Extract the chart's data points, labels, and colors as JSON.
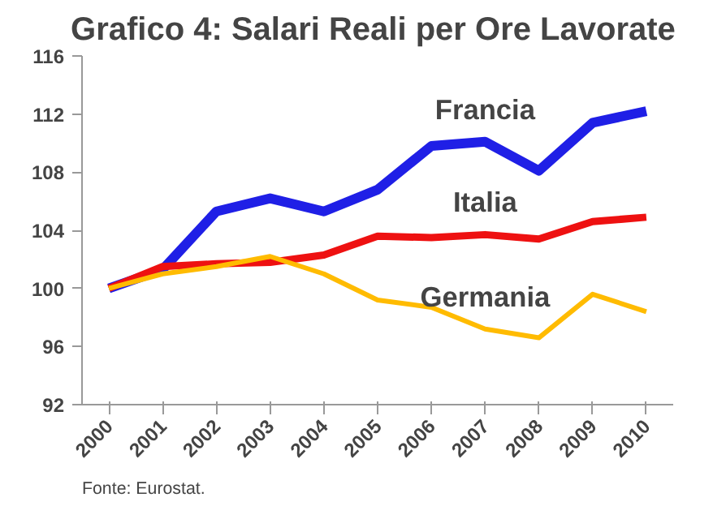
{
  "chart_data": {
    "type": "line",
    "title": "Grafico 4:  Salari Reali per Ore Lavorate",
    "categories": [
      "2000",
      "2001",
      "2002",
      "2003",
      "2004",
      "2005",
      "2006",
      "2007",
      "2008",
      "2009",
      "2010"
    ],
    "series": [
      {
        "name": "Francia",
        "color": "#1f1fe6",
        "values": [
          100,
          101.3,
          105.3,
          106.2,
          105.3,
          106.8,
          109.8,
          110.1,
          108.1,
          111.4,
          112.2
        ]
      },
      {
        "name": "Italia",
        "color": "#ee1111",
        "values": [
          100,
          101.5,
          101.7,
          101.8,
          102.3,
          103.6,
          103.5,
          103.7,
          103.4,
          104.6,
          104.9
        ]
      },
      {
        "name": "Germania",
        "color": "#ffbb00",
        "values": [
          100,
          101.0,
          101.5,
          102.2,
          101.0,
          99.2,
          98.7,
          97.2,
          96.6,
          99.6,
          98.4
        ]
      }
    ],
    "ylim": [
      92,
      116
    ],
    "yticks": [
      92,
      96,
      100,
      104,
      108,
      112,
      116
    ],
    "grid": false,
    "legend": false,
    "marker": "none",
    "line_style": "solid",
    "annotations": [
      "Fonte: Eurostat."
    ]
  }
}
